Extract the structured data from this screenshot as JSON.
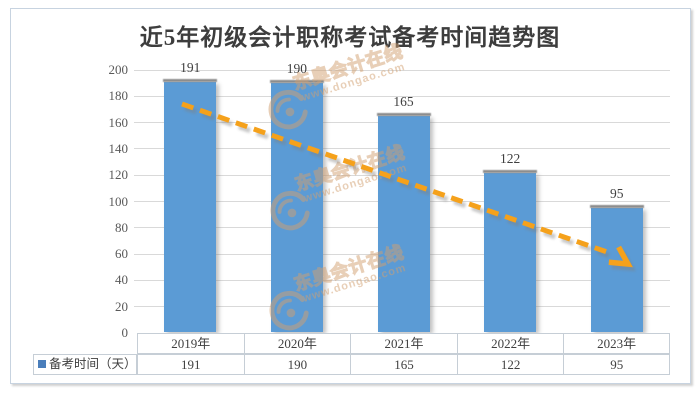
{
  "chart_data": {
    "type": "bar",
    "title": "近5年初级会计职称考试备考时间趋势图",
    "categories": [
      "2019年",
      "2020年",
      "2021年",
      "2022年",
      "2023年"
    ],
    "series": [
      {
        "name": "备考时间（天）",
        "values": [
          191,
          190,
          165,
          122,
          95
        ]
      }
    ],
    "data_labels": [
      "191",
      "190",
      "165",
      "122",
      "95"
    ],
    "xlabel": "",
    "ylabel": "",
    "ylim": [
      0,
      200
    ],
    "y_ticks": [
      0,
      20,
      40,
      60,
      80,
      100,
      120,
      140,
      160,
      180,
      200
    ],
    "grid": true,
    "legend_position": "bottom-table",
    "bar_color": "#5b9bd5",
    "trend_line": {
      "style": "dashed-arrow",
      "color": "#f5a11b",
      "direction": "downward",
      "approx_from_value": 172,
      "approx_to_value": 58
    }
  },
  "table": {
    "legend_label": "备考时间（天）",
    "columns": [
      "2019年",
      "2020年",
      "2021年",
      "2022年",
      "2023年"
    ],
    "values": [
      "191",
      "190",
      "165",
      "122",
      "95"
    ]
  },
  "watermark": {
    "brand": "东奥会计在线",
    "url": "www.dongao.com",
    "color": "#d2a071"
  },
  "colors": {
    "title_text": "#3d3d3d",
    "axis_text": "#595959",
    "gridline": "#d9d9d9",
    "table_border": "#c6ced6",
    "legend_marker": "#4a7ebb",
    "bar_shadow_cap": "#8d8d8d"
  }
}
